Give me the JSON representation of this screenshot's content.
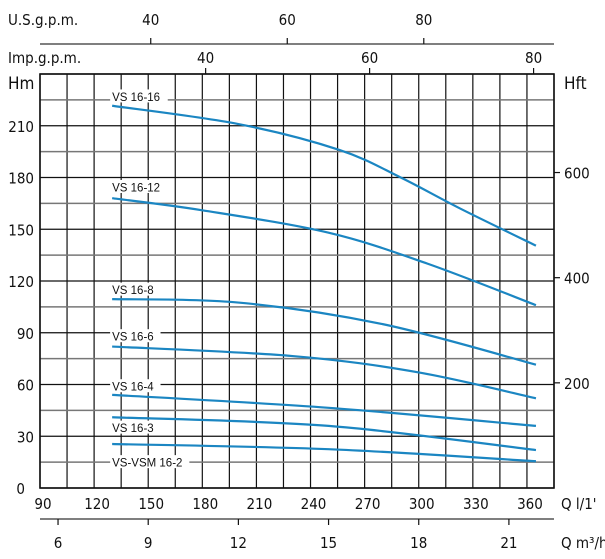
{
  "chart_data": {
    "type": "line",
    "x_unit_label": "Q l/1'",
    "x2_unit_label": "Q m³/h",
    "y_label": "Hm",
    "y2_label": "Hft",
    "us_gpm_label": "U.S.g.p.m.",
    "imp_gpm_label": "Imp.g.p.m.",
    "xlim": [
      90,
      375
    ],
    "ylim": [
      0,
      240
    ],
    "x_grid_step": 15,
    "y_grid_step": 15,
    "grid": true,
    "x_ticks": [
      90,
      120,
      150,
      180,
      210,
      240,
      270,
      300,
      330,
      360
    ],
    "y_ticks": [
      0,
      30,
      60,
      90,
      120,
      150,
      180,
      210
    ],
    "y2_ticks": [
      200,
      400,
      600
    ],
    "m3h_ticks": [
      6,
      9,
      12,
      15,
      18,
      21
    ],
    "us_gpm_ticks": [
      40,
      60,
      80
    ],
    "imp_gpm_ticks": [
      40,
      60,
      80
    ],
    "line_color": "#1b86c2",
    "series": [
      {
        "name": "VS 16-16",
        "label_h": 227,
        "points": [
          [
            130,
            221.6
          ],
          [
            200,
            211
          ],
          [
            256,
            196
          ],
          [
            290,
            180
          ],
          [
            323,
            162
          ],
          [
            365,
            140.5
          ]
        ]
      },
      {
        "name": "VS 16-12",
        "label_h": 174.5,
        "points": [
          [
            130,
            168
          ],
          [
            180,
            161
          ],
          [
            250,
            148
          ],
          [
            305,
            130
          ],
          [
            365,
            106
          ]
        ]
      },
      {
        "name": "VS 16-8",
        "label_h": 115,
        "points": [
          [
            130,
            109.5
          ],
          [
            200,
            107.5
          ],
          [
            280,
            95
          ],
          [
            365,
            71.5
          ]
        ]
      },
      {
        "name": "VS 16-6",
        "label_h": 88,
        "points": [
          [
            130,
            82
          ],
          [
            230,
            76.5
          ],
          [
            300,
            67
          ],
          [
            365,
            52
          ]
        ]
      },
      {
        "name": "VS 16-4",
        "label_h": 59,
        "points": [
          [
            130,
            54
          ],
          [
            250,
            46.5
          ],
          [
            365,
            36
          ]
        ]
      },
      {
        "name": "VS 16-3",
        "label_h": 35,
        "points": [
          [
            130,
            41
          ],
          [
            250,
            36
          ],
          [
            365,
            22
          ]
        ]
      },
      {
        "name": "VS-VSM 16-2",
        "label_h": 15,
        "points": [
          [
            130,
            25.5
          ],
          [
            250,
            22.5
          ],
          [
            365,
            15.5
          ]
        ]
      }
    ]
  }
}
